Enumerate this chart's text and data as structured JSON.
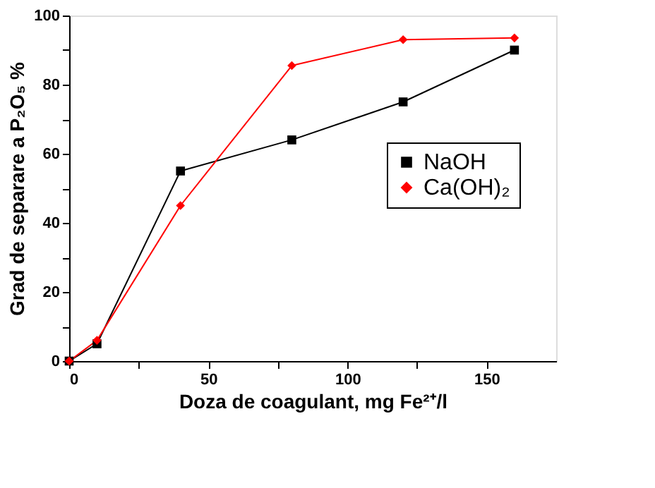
{
  "chart_data": {
    "type": "line",
    "xlabel": "Doza de coagulant, mg Fe²⁺/l",
    "ylabel": "Grad de separare a P₂O₅ %",
    "x": [
      0,
      10,
      40,
      80,
      120,
      160
    ],
    "series": [
      {
        "name": "NaOH",
        "color": "#000000",
        "marker": "square",
        "values": [
          0,
          5,
          55,
          64,
          75,
          90
        ]
      },
      {
        "name": "Ca(OH)₂",
        "color": "#ff0000",
        "marker": "diamond",
        "values": [
          0,
          6,
          45,
          85.5,
          93,
          93.5
        ]
      }
    ],
    "xlim": [
      0,
      175
    ],
    "xticks": [
      0,
      {
        "value": 25,
        "label": null
      },
      50,
      {
        "value": 75,
        "label": null
      },
      100,
      {
        "value": 125,
        "label": null
      },
      150
    ],
    "ylim": [
      0,
      100
    ],
    "yticks": [
      0,
      {
        "value": 10,
        "label": null
      },
      20,
      {
        "value": 30,
        "label": null
      },
      40,
      {
        "value": 50,
        "label": null
      },
      60,
      {
        "value": 70,
        "label": null
      },
      80,
      {
        "value": 90,
        "label": null
      },
      100
    ],
    "grid": false,
    "legend": "right",
    "line_style": "solid"
  }
}
